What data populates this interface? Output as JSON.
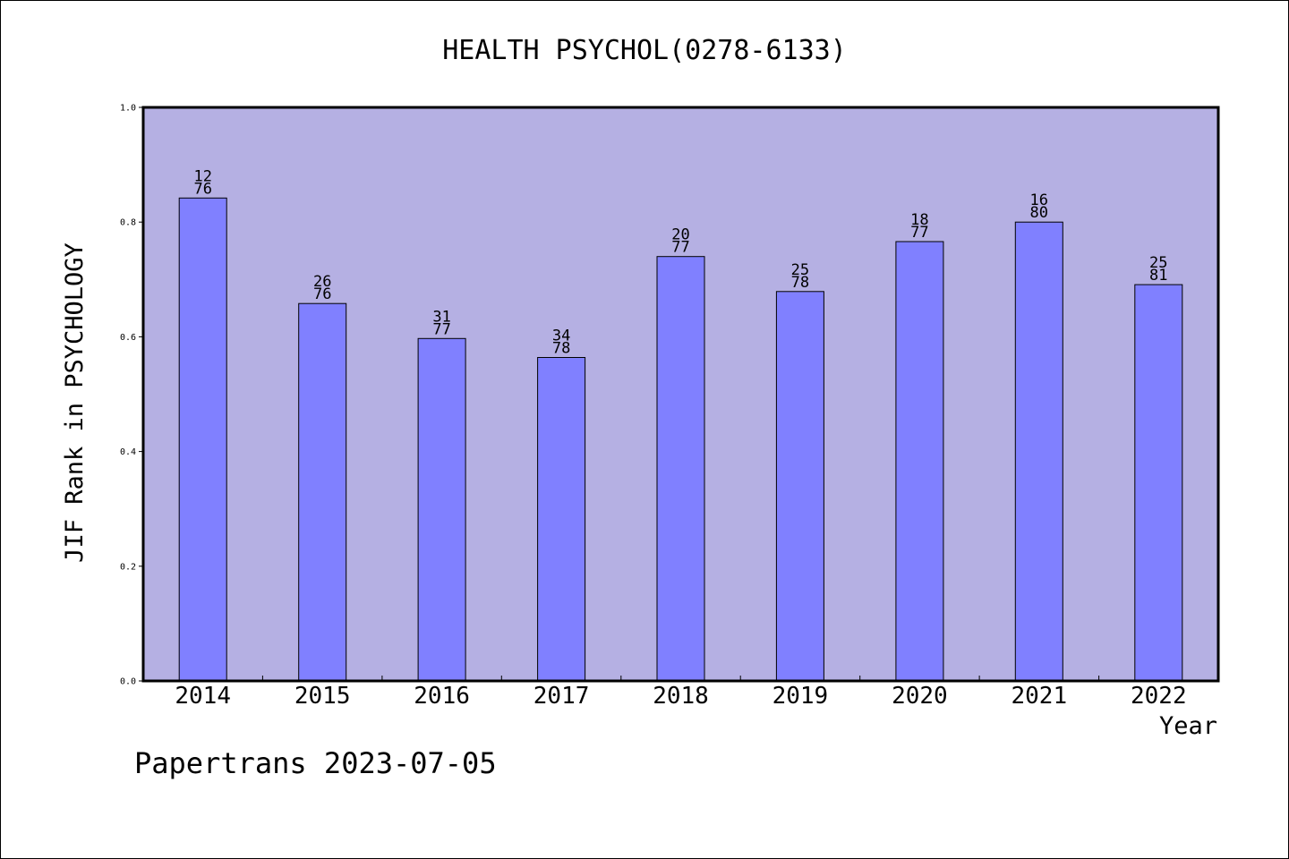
{
  "chart_data": {
    "type": "bar",
    "title": "HEALTH PSYCHOL(0278-6133)",
    "xlabel": "Year",
    "ylabel": "JIF Rank in PSYCHOLOGY",
    "ylim": [
      0,
      1.0
    ],
    "yticks": [
      "0.0",
      "0.2",
      "0.4",
      "0.6",
      "0.8",
      "1.0"
    ],
    "categories": [
      "2014",
      "2015",
      "2016",
      "2017",
      "2018",
      "2019",
      "2020",
      "2021",
      "2022"
    ],
    "values": [
      0.842,
      0.658,
      0.597,
      0.564,
      0.74,
      0.679,
      0.766,
      0.8,
      0.691
    ],
    "ranks": [
      "12",
      "26",
      "31",
      "34",
      "20",
      "25",
      "18",
      "16",
      "25"
    ],
    "totals": [
      "76",
      "76",
      "77",
      "78",
      "77",
      "78",
      "77",
      "80",
      "81"
    ],
    "grid": false,
    "legend": "none",
    "colors": {
      "plot_background": "#b5b0e3",
      "bar_fill": "#8080ff",
      "bar_stroke": "#000000",
      "text": "#000000"
    }
  },
  "footer": {
    "text": "Papertrans 2023-07-05"
  }
}
